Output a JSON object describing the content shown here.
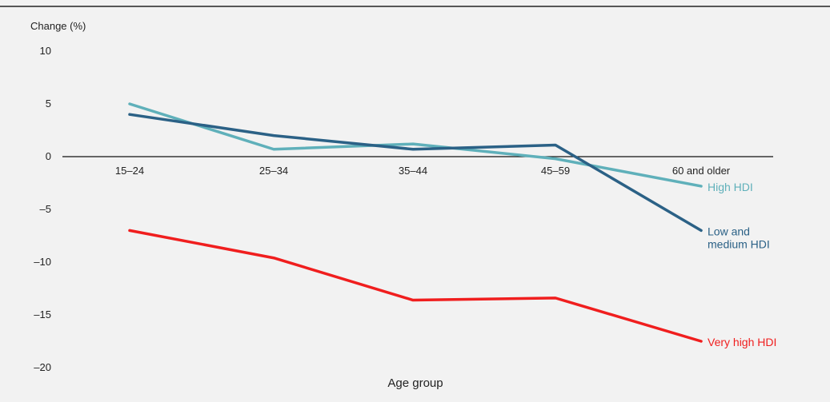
{
  "chart_data": {
    "type": "line",
    "ylabel": "Change (%)",
    "xlabel": "Age group",
    "categories": [
      "15–24",
      "25–34",
      "35–44",
      "45–59",
      "60 and older"
    ],
    "ylim": [
      -20,
      10
    ],
    "yticks": [
      10,
      5,
      0,
      -5,
      -10,
      -15,
      -20
    ],
    "ytick_labels": [
      "10",
      "5",
      "0",
      "–5",
      "–10",
      "–15",
      "–20"
    ],
    "grid": false,
    "series": [
      {
        "name": "High HDI",
        "label_lines": [
          "High HDI"
        ],
        "color": "#5fb0ba",
        "values": [
          5.0,
          0.7,
          1.2,
          -0.2,
          -2.8
        ]
      },
      {
        "name": "Low and medium HDI",
        "label_lines": [
          "Low and",
          "medium HDI"
        ],
        "color": "#2b6186",
        "values": [
          4.0,
          2.0,
          0.7,
          1.1,
          -7.0
        ]
      },
      {
        "name": "Very high HDI",
        "label_lines": [
          "Very high HDI"
        ],
        "color": "#f01e1e",
        "values": [
          -7.0,
          -9.6,
          -13.6,
          -13.4,
          -17.5
        ]
      }
    ]
  }
}
